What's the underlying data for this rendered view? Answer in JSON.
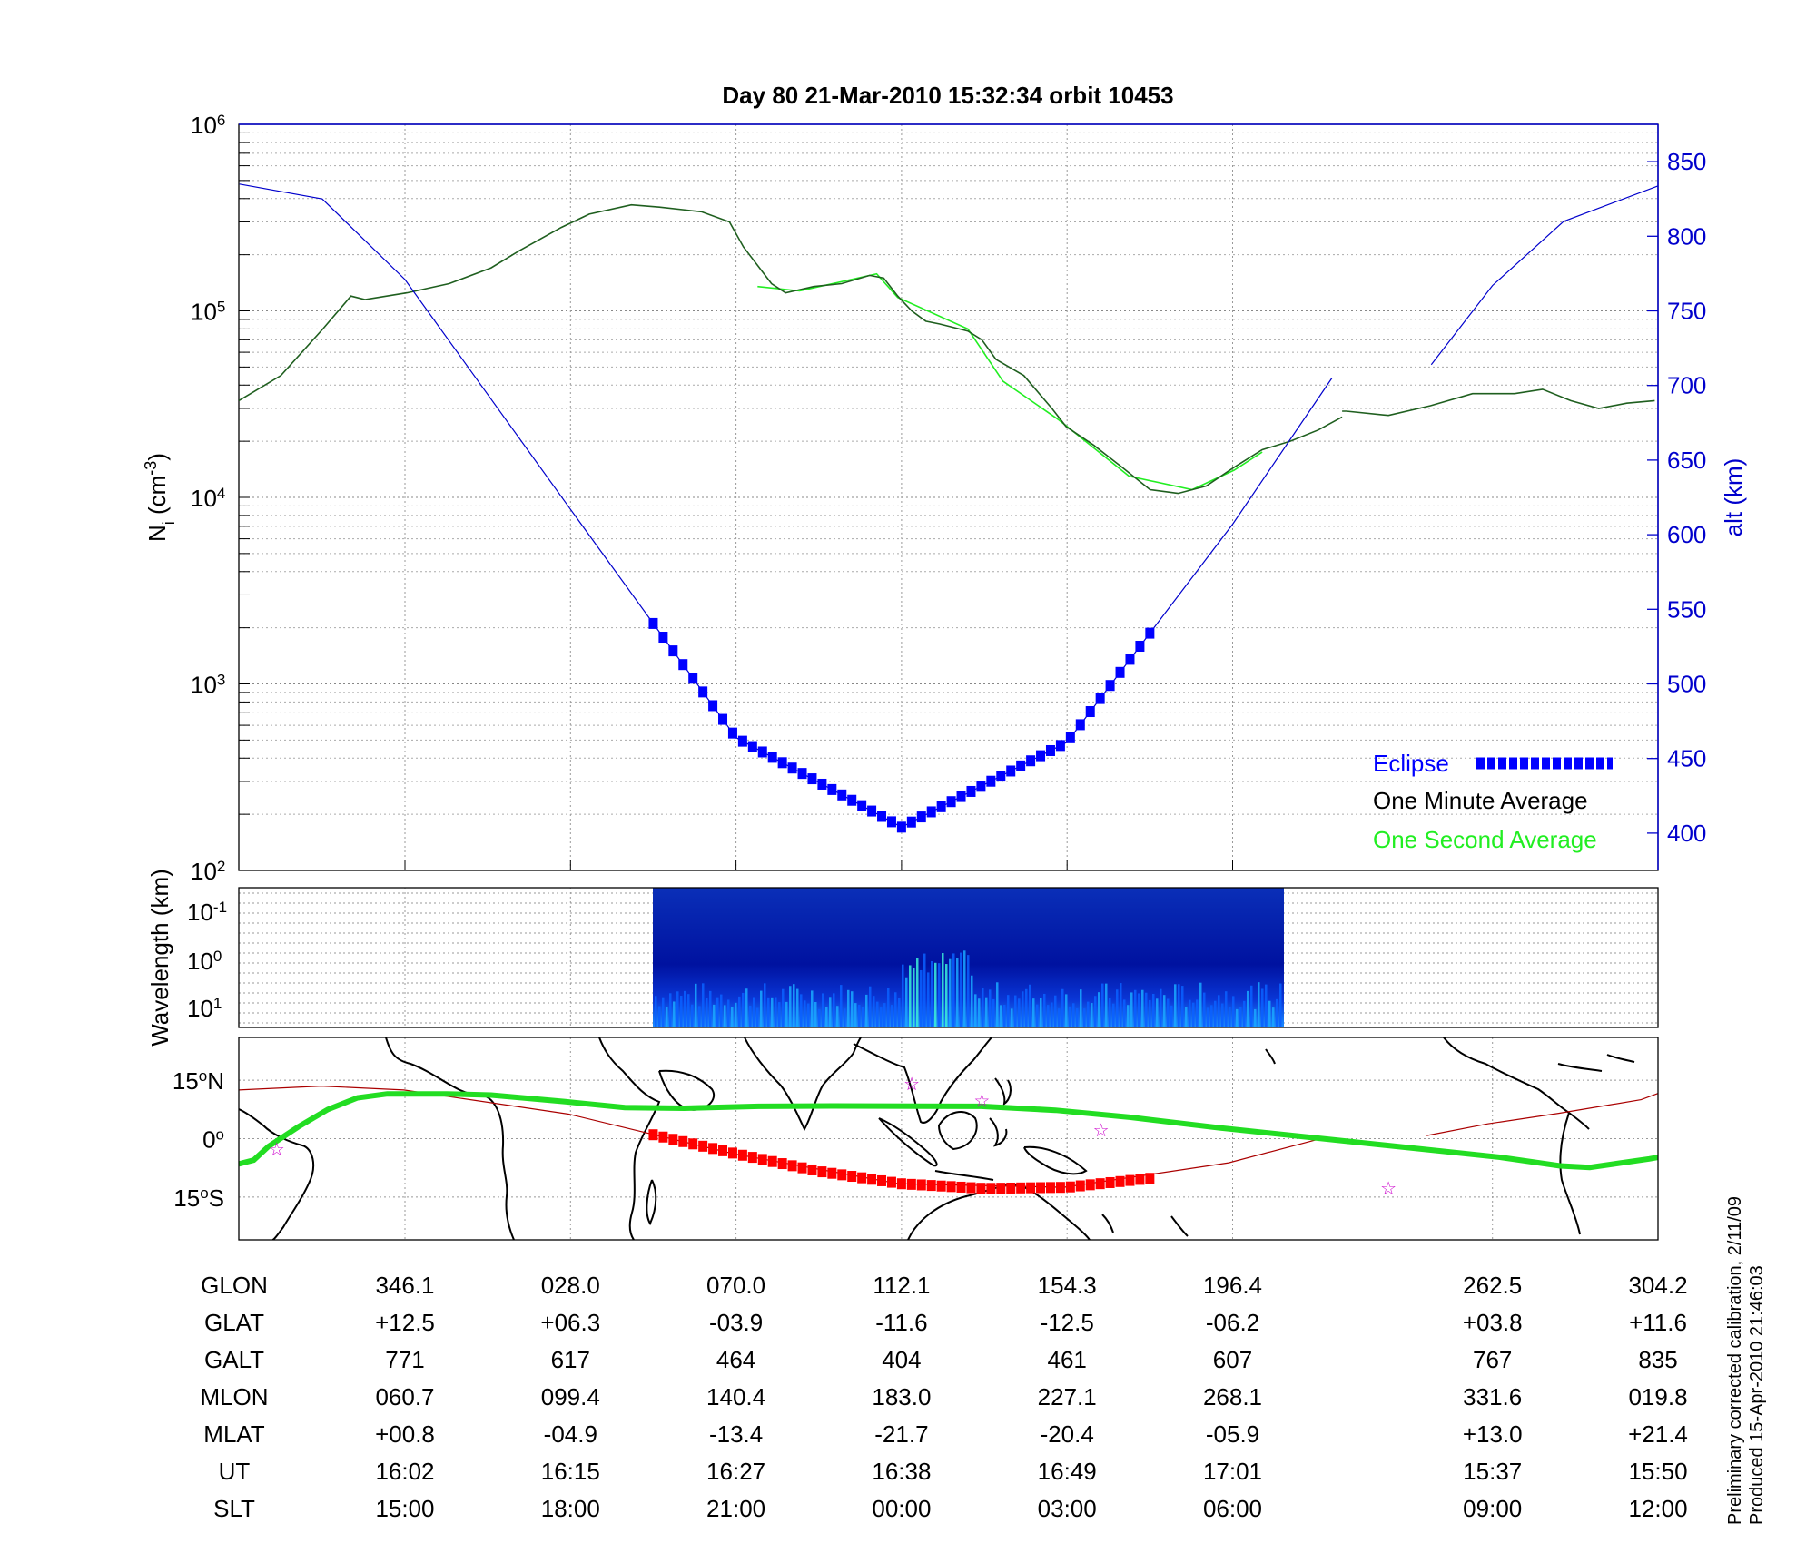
{
  "title": "Day 80  21-Mar-2010 15:32:34   orbit 10453",
  "colors": {
    "one_minute": "#1f5f1f",
    "one_second": "#22ee22",
    "altitude": "#0000cc",
    "eclipse": "#0000ff",
    "track": "#22dd22",
    "track_eclipse": "#ff0000",
    "orbit_line": "#aa0000",
    "stars": "#cc00cc"
  },
  "chart_data": [
    {
      "type": "line",
      "panel": "density",
      "x_index_range": [
        0,
        8.6
      ],
      "ylabel": "N",
      "ylabel_sub": "i",
      "ylabel_unit_pre": " (cm",
      "ylabel_unit_sup": "-3",
      "ylabel_unit_post": ")",
      "yscale": "log",
      "ylim": [
        100,
        1000000
      ],
      "yticks": [
        {
          "value": 100,
          "base": "10",
          "exp": "2"
        },
        {
          "value": 1000,
          "base": "10",
          "exp": "3"
        },
        {
          "value": 10000,
          "base": "10",
          "exp": "4"
        },
        {
          "value": 100000,
          "base": "10",
          "exp": "5"
        },
        {
          "value": 1000000,
          "base": "10",
          "exp": "6"
        }
      ],
      "y2label": "alt (km)",
      "y2lim": [
        375,
        875
      ],
      "y2ticks": [
        "400",
        "450",
        "500",
        "550",
        "600",
        "650",
        "700",
        "750",
        "800",
        "850"
      ],
      "series": [
        {
          "name": "One Minute Average",
          "values": [
            [
              0,
              33000
            ],
            [
              0.3,
              45000
            ],
            [
              0.6,
              80000
            ],
            [
              0.8,
              120000
            ],
            [
              0.9,
              115000
            ],
            [
              1.2,
              125000
            ],
            [
              1.5,
              140000
            ],
            [
              1.8,
              170000
            ],
            [
              2.0,
              210000
            ],
            [
              2.3,
              280000
            ],
            [
              2.5,
              330000
            ],
            [
              2.8,
              370000
            ],
            [
              3.0,
              360000
            ],
            [
              3.3,
              340000
            ],
            [
              3.5,
              300000
            ],
            [
              3.6,
              220000
            ],
            [
              3.8,
              140000
            ],
            [
              3.9,
              125000
            ],
            [
              4.1,
              135000
            ],
            [
              4.3,
              140000
            ],
            [
              4.5,
              155000
            ],
            [
              4.6,
              150000
            ],
            [
              4.7,
              120000
            ],
            [
              4.8,
              100000
            ],
            [
              4.9,
              88000
            ],
            [
              5.0,
              85000
            ],
            [
              5.2,
              78000
            ],
            [
              5.3,
              70000
            ],
            [
              5.4,
              55000
            ],
            [
              5.6,
              45000
            ],
            [
              5.8,
              30000
            ],
            [
              5.9,
              24000
            ],
            [
              6.1,
              19000
            ],
            [
              6.3,
              14500
            ],
            [
              6.5,
              11000
            ],
            [
              6.7,
              10500
            ],
            [
              6.9,
              11500
            ],
            [
              7.1,
              14500
            ],
            [
              7.3,
              18000
            ],
            [
              7.5,
              20000
            ],
            [
              7.7,
              23000
            ],
            [
              7.87,
              27000
            ],
            null,
            [
              7.87,
              29000
            ],
            [
              7.9,
              29000
            ],
            [
              8.2,
              27500
            ],
            [
              8.5,
              31000
            ],
            [
              8.8,
              36000
            ],
            [
              9.1,
              36000
            ],
            [
              9.3,
              38000
            ],
            [
              9.5,
              33000
            ],
            [
              9.7,
              30000
            ],
            [
              9.9,
              32000
            ],
            [
              10.1,
              33000
            ]
          ]
        },
        {
          "name": "One Second Average",
          "values": [
            [
              3.7,
              135000
            ],
            [
              4.0,
              128000
            ],
            [
              4.55,
              158000
            ],
            [
              4.7,
              118000
            ],
            [
              5.2,
              80000
            ],
            [
              5.45,
              42000
            ],
            [
              5.85,
              26000
            ],
            [
              6.35,
              13000
            ],
            [
              6.8,
              11000
            ],
            [
              7.1,
              14000
            ],
            [
              7.3,
              17500
            ]
          ]
        },
        {
          "name": "alt (km)",
          "values": [
            [
              0,
              835
            ],
            [
              0.5,
              825
            ],
            [
              1.0,
              771
            ],
            [
              2.0,
              617
            ],
            [
              3.0,
              464
            ],
            [
              4.0,
              404
            ],
            [
              5.0,
              461
            ],
            [
              6.0,
              607
            ],
            [
              6.6,
              705
            ],
            null,
            [
              7.2,
              714
            ],
            [
              7.57,
              767
            ],
            [
              8.0,
              810
            ],
            [
              8.6,
              835
            ]
          ]
        },
        {
          "name": "Eclipse",
          "x_range": [
            2.5,
            5.5
          ]
        }
      ],
      "legend_position": "bottom-right",
      "grid": true
    },
    {
      "type": "heatmap",
      "panel": "spectrogram",
      "ylabel": "Wavelength (km)",
      "yticks": [
        {
          "base": "10",
          "exp": "-1"
        },
        {
          "base": "10",
          "exp": "0"
        },
        {
          "base": "10",
          "exp": "1"
        }
      ],
      "data_x_range": [
        2.5,
        6.3
      ]
    },
    {
      "type": "scatter",
      "panel": "map",
      "yticks": [
        {
          "deg": "15",
          "hemi": "N",
          "lat": 15
        },
        {
          "deg": "0",
          "hemi": "",
          "lat": 0
        },
        {
          "deg": "15",
          "hemi": "S",
          "lat": -15
        }
      ],
      "ylim": [
        -26,
        26
      ],
      "track": [
        [
          0,
          -6.5
        ],
        [
          0.1,
          -5.5
        ],
        [
          0.2,
          -2
        ],
        [
          0.4,
          3
        ],
        [
          0.6,
          7.5
        ],
        [
          0.8,
          10.5
        ],
        [
          1.0,
          11.5
        ],
        [
          1.4,
          11.5
        ],
        [
          1.7,
          11.2
        ],
        [
          2.2,
          9.5
        ],
        [
          2.6,
          8.0
        ],
        [
          3.0,
          7.8
        ],
        [
          3.5,
          8.3
        ],
        [
          4.0,
          8.4
        ],
        [
          5.0,
          8.3
        ],
        [
          5.5,
          7.3
        ],
        [
          6.0,
          5.5
        ],
        [
          6.6,
          2.8
        ],
        [
          7.3,
          0
        ],
        [
          8.0,
          -2.8
        ],
        [
          8.5,
          -4.8
        ],
        [
          8.9,
          -7
        ],
        [
          9.1,
          -7.4
        ],
        [
          9.3,
          -6.3
        ],
        [
          9.5,
          -5.2
        ],
        [
          9.56,
          -4.8
        ]
      ],
      "orbit": [
        [
          0,
          12.5
        ],
        [
          0.5,
          13.5
        ],
        [
          1.0,
          12.5
        ],
        [
          2.0,
          6.3
        ],
        [
          3.0,
          -3.9
        ],
        [
          4.0,
          -11.6
        ],
        [
          5.0,
          -12.5
        ],
        [
          6.0,
          -6.2
        ],
        [
          6.6,
          0.5
        ],
        null,
        [
          7.2,
          0.8
        ],
        [
          7.57,
          3.8
        ],
        [
          8.0,
          6.5
        ],
        [
          8.5,
          10.0
        ],
        [
          8.6,
          11.6
        ]
      ],
      "eclipse_track": [
        [
          2.5,
          1
        ],
        [
          3.0,
          -3.9
        ],
        [
          3.5,
          -8.4
        ],
        [
          4.0,
          -11.6
        ],
        [
          4.5,
          -12.8
        ],
        [
          5.0,
          -12.5
        ],
        [
          5.5,
          -10.2
        ]
      ],
      "stars": [
        [
          0.27,
          -2.4
        ],
        [
          4.8,
          14.3
        ],
        [
          5.3,
          10.0
        ],
        [
          6.15,
          2.4
        ],
        [
          8.2,
          -12.5
        ]
      ]
    }
  ],
  "table": {
    "row_labels": [
      "GLON",
      "GLAT",
      "GALT",
      "MLON",
      "MLAT",
      "UT",
      "SLT"
    ],
    "columns": [
      {
        "x": 1,
        "values": [
          "346.1",
          "+12.5",
          "771",
          "060.7",
          "+00.8",
          "16:02",
          "15:00"
        ]
      },
      {
        "x": 2,
        "values": [
          "028.0",
          "+06.3",
          "617",
          "099.4",
          "-04.9",
          "16:15",
          "18:00"
        ]
      },
      {
        "x": 3,
        "values": [
          "070.0",
          "-03.9",
          "464",
          "140.4",
          "-13.4",
          "16:27",
          "21:00"
        ]
      },
      {
        "x": 4,
        "values": [
          "112.1",
          "-11.6",
          "404",
          "183.0",
          "-21.7",
          "16:38",
          "00:00"
        ]
      },
      {
        "x": 5,
        "values": [
          "154.3",
          "-12.5",
          "461",
          "227.1",
          "-20.4",
          "16:49",
          "03:00"
        ]
      },
      {
        "x": 6,
        "values": [
          "196.4",
          "-06.2",
          "607",
          "268.1",
          "-05.9",
          "17:01",
          "06:00"
        ]
      },
      {
        "x": 7.57,
        "values": [
          "262.5",
          "+03.8",
          "767",
          "331.6",
          "+13.0",
          "15:37",
          "09:00"
        ]
      },
      {
        "x": 8.57,
        "values": [
          "304.2",
          "+11.6",
          "835",
          "019.8",
          "+21.4",
          "15:50",
          "12:00"
        ]
      }
    ]
  },
  "legend": {
    "eclipse": "Eclipse",
    "one_minute": "One Minute Average",
    "one_second": "One Second Average"
  },
  "footnote": {
    "line1": "Preliminary corrected calibration, 2/11/09",
    "line2": "Produced 15-Apr-2010 21:46:03"
  }
}
